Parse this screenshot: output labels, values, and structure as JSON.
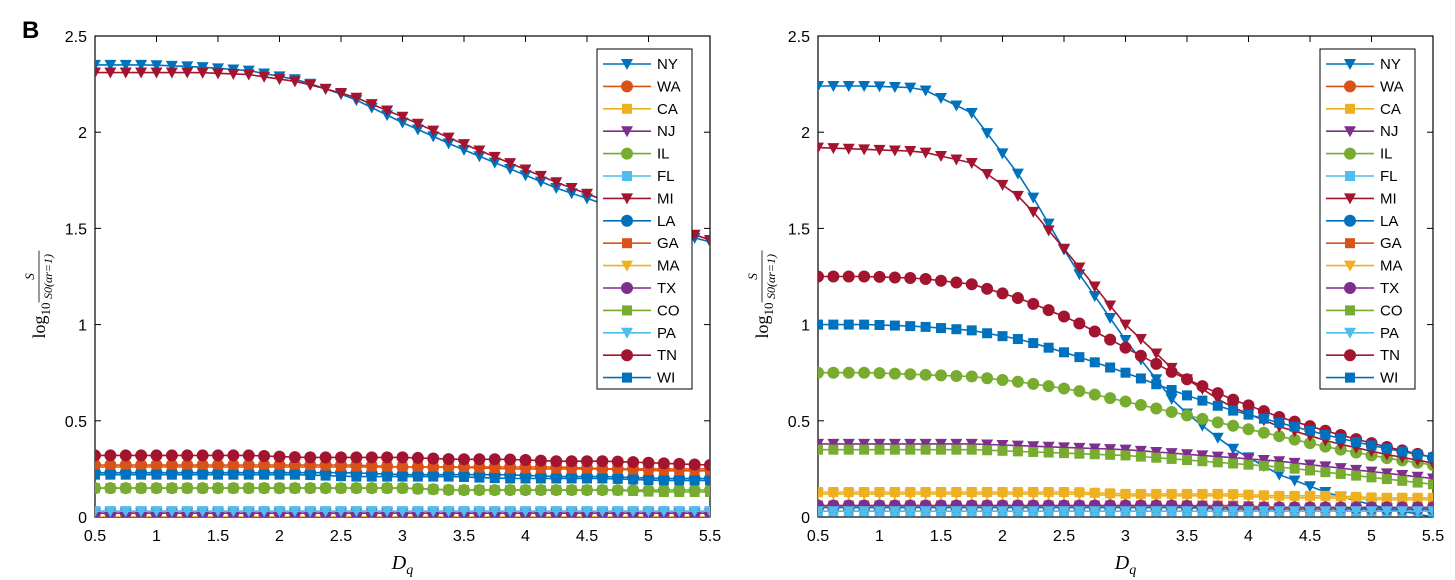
{
  "panel_label": "B",
  "legend_names": [
    "NY",
    "WA",
    "CA",
    "NJ",
    "IL",
    "FL",
    "MI",
    "LA",
    "GA",
    "MA",
    "TX",
    "CO",
    "PA",
    "TN",
    "WI"
  ],
  "colors": {
    "NY": "#0072BD",
    "WA": "#D95319",
    "CA": "#EDB120",
    "NJ": "#7E2F8E",
    "IL": "#77AC30",
    "FL": "#4DBEEE",
    "MI": "#A2142F",
    "LA": "#0072BD",
    "GA": "#D95319",
    "MA": "#EDB120",
    "TX": "#7E2F8E",
    "CO": "#77AC30",
    "PA": "#4DBEEE",
    "TN": "#A2142F",
    "WI": "#0072BD"
  },
  "markers": {
    "NY": "triangle-down",
    "WA": "circle",
    "CA": "square",
    "NJ": "triangle-down",
    "IL": "circle",
    "FL": "square",
    "MI": "triangle-down",
    "LA": "circle",
    "GA": "square",
    "MA": "triangle-down",
    "TX": "circle",
    "CO": "square",
    "PA": "triangle-down",
    "TN": "circle",
    "WI": "square"
  },
  "chart_data": [
    {
      "type": "line",
      "xlabel": "D_q",
      "ylabel": "log10 S / S0(αr=1)",
      "xlim": [
        0.5,
        5.5
      ],
      "ylim": [
        0,
        2.5
      ],
      "xticks": [
        "0.5",
        "1",
        "1.5",
        "2",
        "2.5",
        "3",
        "3.5",
        "4",
        "4.5",
        "5",
        "5.5"
      ],
      "yticks": [
        "0",
        "0.5",
        "1",
        "1.5",
        "2",
        "2.5"
      ],
      "x_samples": 41,
      "series": [
        {
          "name": "NY",
          "values": [
            2.35,
            2.35,
            2.34,
            2.32,
            2.27,
            2.18,
            2.05,
            1.93,
            1.82,
            1.71,
            1.62,
            1.5,
            1.43
          ]
        },
        {
          "name": "WA",
          "values": [
            0.27,
            0.27,
            0.27,
            0.27,
            0.27,
            0.27,
            0.26,
            0.26,
            0.26,
            0.26,
            0.25,
            0.25,
            0.25
          ]
        },
        {
          "name": "CA",
          "values": [
            0.0,
            0.0,
            0.0,
            0.0,
            0.0,
            0.0,
            0.0,
            0.0,
            0.0,
            0.0,
            0.0,
            0.0,
            0.0
          ]
        },
        {
          "name": "NJ",
          "values": [
            0.02,
            0.02,
            0.02,
            0.02,
            0.02,
            0.02,
            0.02,
            0.02,
            0.02,
            0.02,
            0.02,
            0.02,
            0.02
          ]
        },
        {
          "name": "IL",
          "values": [
            0.15,
            0.15,
            0.15,
            0.15,
            0.15,
            0.15,
            0.15,
            0.14,
            0.14,
            0.14,
            0.14,
            0.14,
            0.14
          ]
        },
        {
          "name": "FL",
          "values": [
            0.03,
            0.03,
            0.03,
            0.03,
            0.03,
            0.03,
            0.03,
            0.03,
            0.03,
            0.03,
            0.03,
            0.03,
            0.03
          ]
        },
        {
          "name": "MI",
          "values": [
            2.31,
            2.31,
            2.31,
            2.3,
            2.26,
            2.19,
            2.08,
            1.96,
            1.85,
            1.74,
            1.64,
            1.53,
            1.44
          ]
        },
        {
          "name": "LA",
          "values": [
            0.23,
            0.23,
            0.23,
            0.23,
            0.23,
            0.23,
            0.22,
            0.22,
            0.22,
            0.21,
            0.21,
            0.2,
            0.2
          ]
        },
        {
          "name": "GA",
          "values": [
            0.26,
            0.26,
            0.26,
            0.26,
            0.26,
            0.26,
            0.26,
            0.26,
            0.25,
            0.25,
            0.25,
            0.24,
            0.24
          ]
        },
        {
          "name": "MA",
          "values": [
            0.0,
            0.0,
            0.0,
            0.0,
            0.0,
            0.0,
            0.0,
            0.0,
            0.0,
            0.0,
            0.0,
            0.0,
            0.0
          ]
        },
        {
          "name": "TX",
          "values": [
            0.02,
            0.02,
            0.02,
            0.02,
            0.02,
            0.02,
            0.02,
            0.02,
            0.02,
            0.02,
            0.02,
            0.02,
            0.02
          ]
        },
        {
          "name": "CO",
          "values": [
            0.15,
            0.15,
            0.15,
            0.15,
            0.15,
            0.15,
            0.15,
            0.14,
            0.14,
            0.14,
            0.14,
            0.13,
            0.13
          ]
        },
        {
          "name": "PA",
          "values": [
            0.03,
            0.03,
            0.03,
            0.03,
            0.03,
            0.03,
            0.03,
            0.03,
            0.03,
            0.03,
            0.03,
            0.03,
            0.03
          ]
        },
        {
          "name": "TN",
          "values": [
            0.32,
            0.32,
            0.32,
            0.32,
            0.31,
            0.31,
            0.31,
            0.3,
            0.3,
            0.29,
            0.29,
            0.28,
            0.27
          ]
        },
        {
          "name": "WI",
          "values": [
            0.22,
            0.22,
            0.22,
            0.22,
            0.22,
            0.21,
            0.21,
            0.21,
            0.2,
            0.2,
            0.2,
            0.19,
            0.19
          ]
        }
      ],
      "legend": "top-right"
    },
    {
      "type": "line",
      "xlabel": "D_q",
      "ylabel": "log10 S / S0(αr=1)",
      "xlim": [
        0.5,
        5.5
      ],
      "ylim": [
        0,
        2.5
      ],
      "xticks": [
        "0.5",
        "1",
        "1.5",
        "2",
        "2.5",
        "3",
        "3.5",
        "4",
        "4.5",
        "5",
        "5.5"
      ],
      "yticks": [
        "0",
        "0.5",
        "1",
        "1.5",
        "2",
        "2.5"
      ],
      "x_samples": 41,
      "series": [
        {
          "name": "NY",
          "values": [
            2.24,
            2.24,
            2.23,
            2.1,
            1.75,
            1.3,
            0.92,
            0.58,
            0.37,
            0.22,
            0.12,
            0.05,
            0.0
          ]
        },
        {
          "name": "WA",
          "values": [
            0.05,
            0.05,
            0.05,
            0.05,
            0.05,
            0.05,
            0.05,
            0.05,
            0.04,
            0.04,
            0.04,
            0.04,
            0.04
          ]
        },
        {
          "name": "CA",
          "values": [
            0.13,
            0.13,
            0.13,
            0.13,
            0.13,
            0.13,
            0.12,
            0.12,
            0.12,
            0.11,
            0.11,
            0.1,
            0.1
          ]
        },
        {
          "name": "NJ",
          "values": [
            0.38,
            0.38,
            0.38,
            0.38,
            0.37,
            0.36,
            0.35,
            0.33,
            0.31,
            0.29,
            0.26,
            0.23,
            0.2
          ]
        },
        {
          "name": "IL",
          "values": [
            0.75,
            0.75,
            0.74,
            0.73,
            0.7,
            0.66,
            0.6,
            0.54,
            0.48,
            0.42,
            0.36,
            0.31,
            0.27
          ]
        },
        {
          "name": "FL",
          "values": [
            0.03,
            0.03,
            0.03,
            0.03,
            0.03,
            0.03,
            0.03,
            0.03,
            0.03,
            0.03,
            0.03,
            0.03,
            0.03
          ]
        },
        {
          "name": "MI",
          "values": [
            1.92,
            1.91,
            1.9,
            1.84,
            1.65,
            1.33,
            1.0,
            0.75,
            0.58,
            0.47,
            0.39,
            0.33,
            0.28
          ]
        },
        {
          "name": "LA",
          "values": [
            0.05,
            0.05,
            0.05,
            0.05,
            0.05,
            0.05,
            0.05,
            0.05,
            0.05,
            0.05,
            0.05,
            0.04,
            0.04
          ]
        },
        {
          "name": "GA",
          "values": [
            0.06,
            0.06,
            0.06,
            0.06,
            0.06,
            0.06,
            0.06,
            0.06,
            0.06,
            0.05,
            0.05,
            0.05,
            0.05
          ]
        },
        {
          "name": "MA",
          "values": [
            0.12,
            0.12,
            0.12,
            0.12,
            0.12,
            0.12,
            0.11,
            0.11,
            0.11,
            0.1,
            0.1,
            0.09,
            0.09
          ]
        },
        {
          "name": "TX",
          "values": [
            0.06,
            0.06,
            0.06,
            0.06,
            0.06,
            0.06,
            0.06,
            0.06,
            0.05,
            0.05,
            0.05,
            0.05,
            0.05
          ]
        },
        {
          "name": "CO",
          "values": [
            0.35,
            0.35,
            0.35,
            0.35,
            0.34,
            0.33,
            0.32,
            0.3,
            0.28,
            0.26,
            0.23,
            0.2,
            0.17
          ]
        },
        {
          "name": "PA",
          "values": [
            0.03,
            0.03,
            0.03,
            0.03,
            0.03,
            0.03,
            0.03,
            0.03,
            0.03,
            0.03,
            0.03,
            0.03,
            0.03
          ]
        },
        {
          "name": "TN",
          "values": [
            1.25,
            1.25,
            1.24,
            1.21,
            1.13,
            1.02,
            0.88,
            0.74,
            0.62,
            0.52,
            0.44,
            0.37,
            0.31
          ]
        },
        {
          "name": "WI",
          "values": [
            1.0,
            1.0,
            0.99,
            0.97,
            0.92,
            0.84,
            0.75,
            0.65,
            0.56,
            0.49,
            0.42,
            0.36,
            0.31
          ]
        }
      ],
      "legend": "top-right"
    }
  ]
}
